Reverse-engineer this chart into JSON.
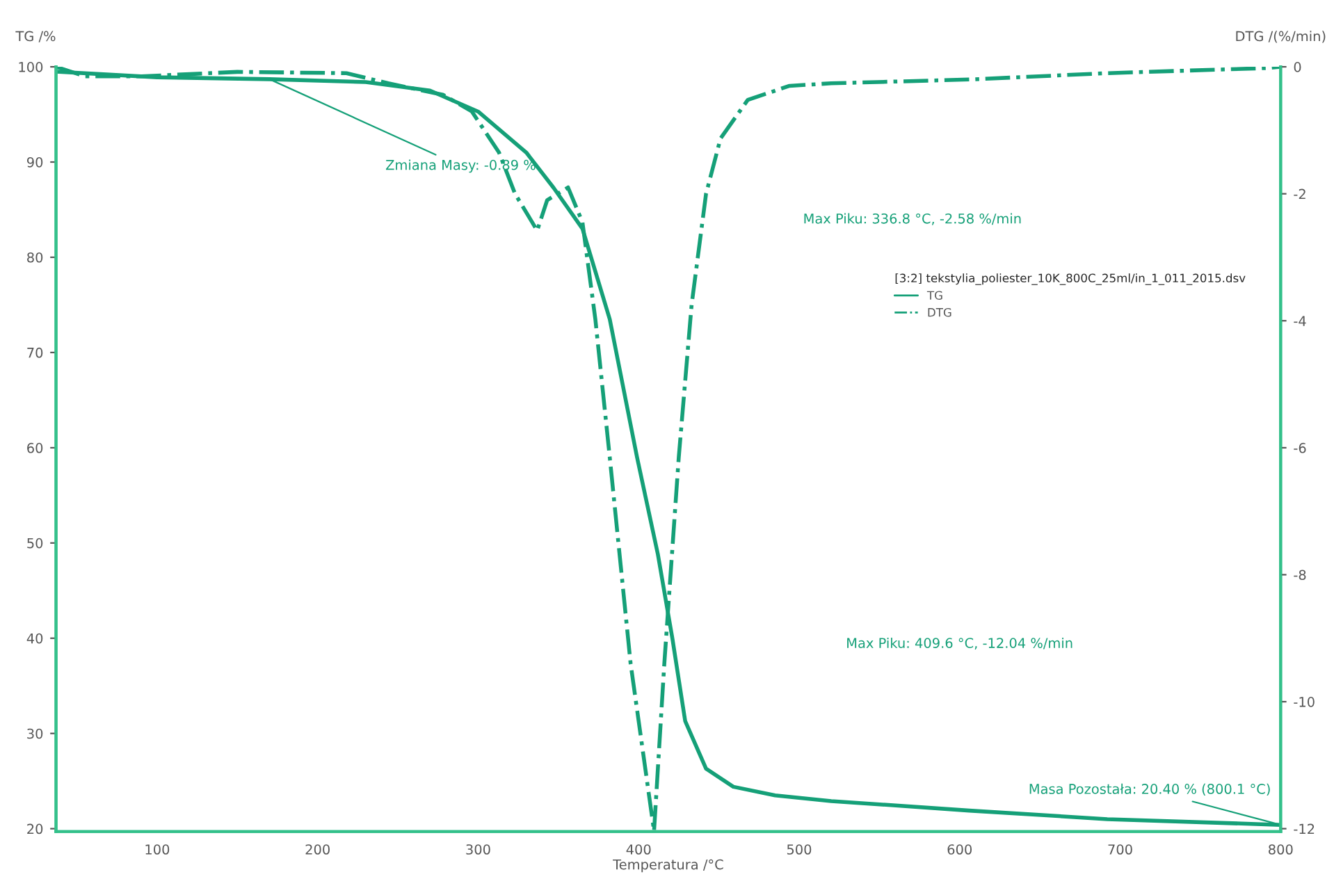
{
  "chart_data": {
    "type": "line",
    "xlabel": "Temperatura /°C",
    "ylabel": "TG /%",
    "y2label": "DTG /(%/min)",
    "legend_title": "[3:2] tekstylia_poliester_10K_800C_25ml/in_1_011_2015.dsv",
    "legend": "right",
    "grid": false,
    "marker": "none",
    "xlim": [
      37,
      800
    ],
    "xticks": [
      100,
      200,
      300,
      400,
      500,
      600,
      700,
      800
    ],
    "ylim": [
      19.7,
      100
    ],
    "yticks": [
      20,
      30,
      40,
      50,
      60,
      70,
      80,
      90,
      100
    ],
    "y2lim": [
      -12.045,
      0
    ],
    "y2ticks": [
      -12,
      -10,
      -8,
      -6,
      -4,
      -2,
      0
    ],
    "series": [
      {
        "name": "TG",
        "color": "#15a078",
        "line_style": "solid",
        "x": [
          37,
          100,
          170,
          230,
          270,
          300,
          330,
          347,
          365,
          382,
          399,
          412,
          421,
          429,
          442,
          459,
          485,
          520,
          606,
          692,
          800
        ],
        "values": [
          99.5,
          98.9,
          98.7,
          98.4,
          97.5,
          95.3,
          91,
          87.3,
          83,
          73.5,
          59,
          48.8,
          40,
          31.3,
          26.3,
          24.4,
          23.5,
          22.9,
          21.9,
          21,
          20.4
        ]
      },
      {
        "name": "DTG",
        "color": "#15a078",
        "line_style": "dashdot",
        "axis": "y2",
        "x": [
          37,
          55,
          90,
          150,
          218,
          244,
          278,
          296,
          313,
          323,
          336.8,
          343,
          356,
          365,
          373,
          382,
          395,
          409.6,
          416,
          425,
          433,
          442,
          451,
          468,
          494,
          520,
          606,
          692,
          791,
          800
        ],
        "values": [
          0,
          -0.15,
          -0.15,
          -0.08,
          -0.1,
          -0.26,
          -0.44,
          -0.7,
          -1.35,
          -2.0,
          -2.58,
          -2.1,
          -1.9,
          -2.45,
          -3.97,
          -6.15,
          -9.4,
          -12.04,
          -9.4,
          -6.15,
          -3.75,
          -2.0,
          -1.13,
          -0.52,
          -0.3,
          -0.26,
          -0.2,
          -0.1,
          -0.02,
          0
        ]
      }
    ],
    "annotations": [
      {
        "text": "Zmiana Masy: -0.89 %",
        "x": 170,
        "y": 98.7
      },
      "Max Piku: 336.8 °C, -2.58 %/min",
      "Max Piku: 409.6 °C, -12.04 %/min",
      {
        "text": "Masa Pozostała: 20.40 % (800.1 °C)",
        "x": 800,
        "y": 20.4
      }
    ]
  }
}
